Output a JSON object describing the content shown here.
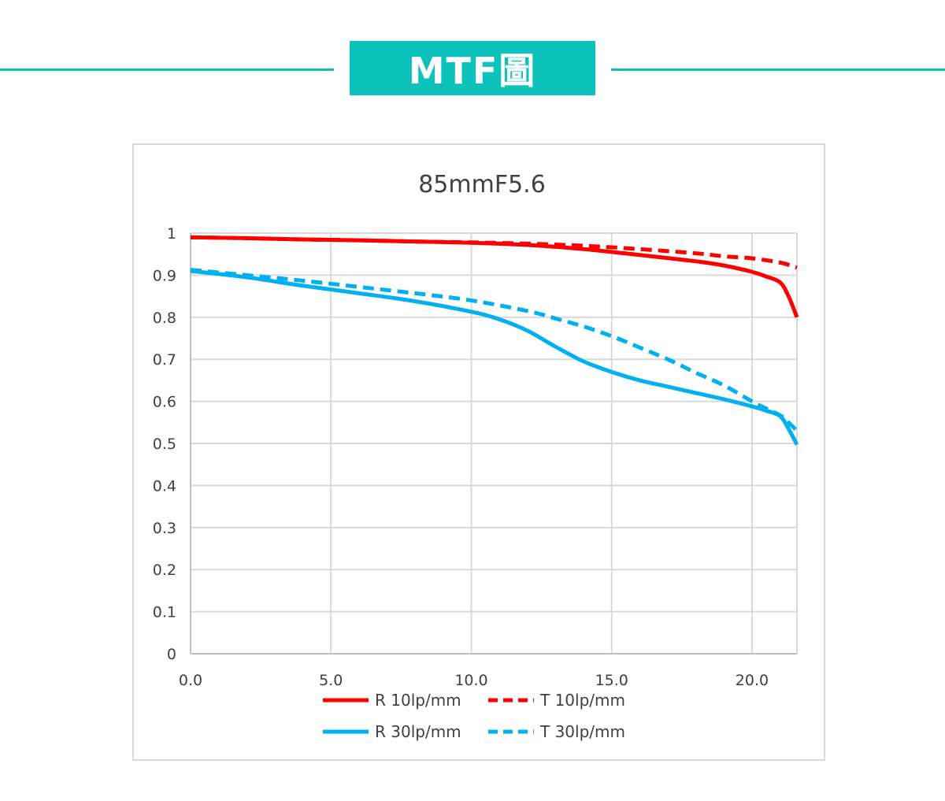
{
  "header": {
    "title": "MTF圖",
    "accent_color": "#0cc2bb"
  },
  "chart_data": {
    "type": "line",
    "title": "85mmF5.6",
    "xlabel": "",
    "ylabel": "",
    "xlim": [
      0,
      21.6
    ],
    "ylim": [
      0,
      1
    ],
    "x_ticks": [
      "0.0",
      "5.0",
      "10.0",
      "15.0",
      "20.0"
    ],
    "y_ticks": [
      "0",
      "0.1",
      "0.2",
      "0.3",
      "0.4",
      "0.5",
      "0.6",
      "0.7",
      "0.8",
      "0.9",
      "1"
    ],
    "grid": true,
    "legend_position": "bottom",
    "series": [
      {
        "name": "R 10lp/mm",
        "color": "#ff0000",
        "dash": "solid",
        "x": [
          0,
          2,
          4,
          6,
          8,
          10,
          12,
          14,
          16,
          18,
          19,
          20,
          20.5,
          21,
          21.3,
          21.6
        ],
        "y": [
          0.99,
          0.988,
          0.985,
          0.983,
          0.98,
          0.977,
          0.972,
          0.962,
          0.948,
          0.933,
          0.923,
          0.908,
          0.897,
          0.883,
          0.85,
          0.8
        ]
      },
      {
        "name": "T 10lp/mm",
        "color": "#ff0000",
        "dash": "dashed",
        "x": [
          0,
          2,
          4,
          6,
          8,
          10,
          12,
          14,
          16,
          18,
          19,
          20,
          21,
          21.6
        ],
        "y": [
          0.99,
          0.988,
          0.985,
          0.983,
          0.98,
          0.978,
          0.975,
          0.97,
          0.962,
          0.952,
          0.945,
          0.94,
          0.93,
          0.918
        ]
      },
      {
        "name": "R 30lp/mm",
        "color": "#00b0f0",
        "dash": "solid",
        "x": [
          0,
          2,
          4,
          6,
          8,
          10,
          11,
          12,
          13,
          14,
          15,
          16,
          17,
          18,
          19,
          20,
          20.5,
          21,
          21.3,
          21.6
        ],
        "y": [
          0.91,
          0.895,
          0.875,
          0.857,
          0.838,
          0.813,
          0.795,
          0.768,
          0.73,
          0.695,
          0.67,
          0.65,
          0.635,
          0.62,
          0.605,
          0.588,
          0.578,
          0.565,
          0.535,
          0.497
        ]
      },
      {
        "name": "T 30lp/mm",
        "color": "#00b0f0",
        "dash": "dashed",
        "x": [
          0,
          2,
          4,
          6,
          8,
          10,
          12,
          13,
          14,
          15,
          16,
          17,
          18,
          19,
          20,
          20.5,
          21,
          21.3,
          21.6
        ],
        "y": [
          0.913,
          0.9,
          0.887,
          0.872,
          0.857,
          0.84,
          0.815,
          0.797,
          0.778,
          0.755,
          0.728,
          0.7,
          0.668,
          0.638,
          0.6,
          0.583,
          0.567,
          0.55,
          0.53
        ]
      }
    ]
  }
}
